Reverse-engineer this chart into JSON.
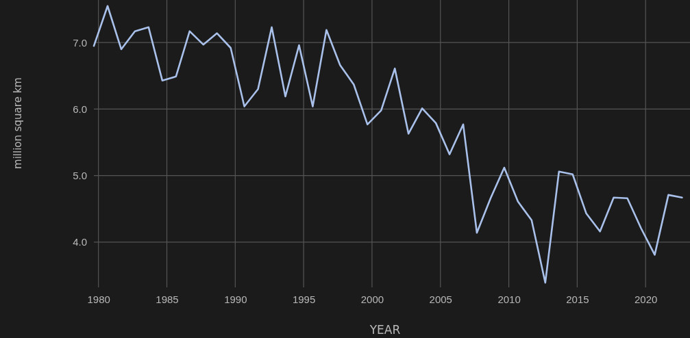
{
  "chart_data": {
    "type": "line",
    "xlabel": "YEAR",
    "ylabel": "million square km",
    "x": [
      "1979-09",
      "1980-09",
      "1981-09",
      "1982-09",
      "1983-09",
      "1984-09",
      "1985-09",
      "1986-09",
      "1987-09",
      "1988-09",
      "1989-09",
      "1990-09",
      "1991-09",
      "1992-09",
      "1993-09",
      "1994-09",
      "1995-09",
      "1996-09",
      "1997-09",
      "1998-09",
      "1999-09",
      "2000-09",
      "2001-09",
      "2002-09",
      "2003-09",
      "2004-09",
      "2005-09",
      "2006-09",
      "2007-09",
      "2008-09",
      "2009-09",
      "2010-09",
      "2011-09",
      "2012-09",
      "2013-09",
      "2014-09",
      "2015-09",
      "2016-09",
      "2017-09",
      "2018-09",
      "2019-09",
      "2020-09",
      "2021-09",
      "2022-09"
    ],
    "series": [
      {
        "color": "#a9c1ea",
        "values": [
          6.95,
          7.55,
          6.9,
          7.17,
          7.23,
          6.43,
          6.49,
          7.17,
          6.97,
          7.14,
          6.92,
          6.04,
          6.3,
          7.23,
          6.19,
          6.96,
          6.04,
          7.19,
          6.66,
          6.37,
          5.77,
          5.98,
          6.61,
          5.63,
          6.01,
          5.79,
          5.32,
          5.77,
          4.14,
          4.66,
          5.12,
          4.61,
          4.33,
          3.39,
          5.06,
          5.02,
          4.43,
          4.16,
          4.67,
          4.66,
          4.21,
          3.81,
          4.71,
          4.67
        ]
      }
    ],
    "xlim": [
      "1979-09",
      "2023-04"
    ],
    "xticks": [
      {
        "value": "1980-01-01",
        "label": "1980"
      },
      {
        "value": "1985-01-01",
        "label": "1985"
      },
      {
        "value": "1990-01-01",
        "label": "1990"
      },
      {
        "value": "1995-01-01",
        "label": "1995"
      },
      {
        "value": "2000-01-01",
        "label": "2000"
      },
      {
        "value": "2005-01-01",
        "label": "2005"
      },
      {
        "value": "2010-01-01",
        "label": "2010"
      },
      {
        "value": "2015-01-01",
        "label": "2015"
      },
      {
        "value": "2020-01-01",
        "label": "2020"
      }
    ],
    "ylim": [
      3.32,
      7.64
    ],
    "yticks": [
      {
        "value": 4,
        "label": "4.0"
      },
      {
        "value": 5,
        "label": "5.0"
      },
      {
        "value": 6,
        "label": "6.0"
      },
      {
        "value": 7,
        "label": "7.0"
      }
    ],
    "grid": true,
    "marker": "none",
    "line_style": "solid"
  }
}
